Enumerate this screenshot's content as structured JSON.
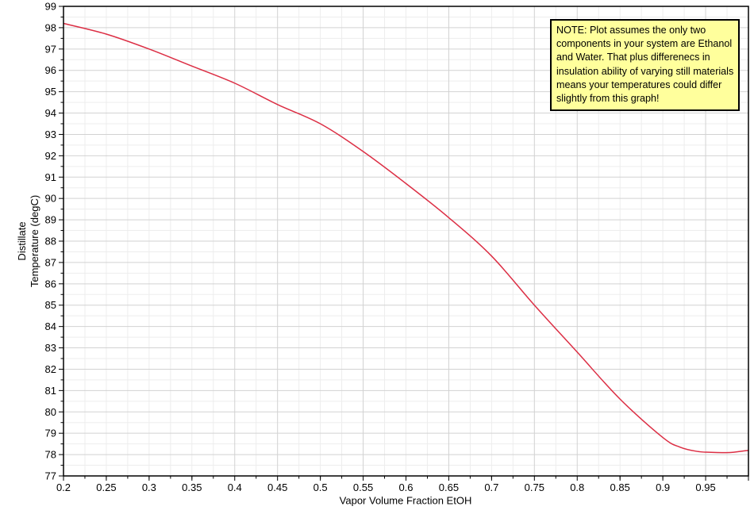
{
  "chart_data": {
    "type": "line",
    "title": "",
    "xlabel": "Vapor Volume Fraction EtOH",
    "ylabel_lines": [
      "Distillate",
      "Temperature (degC)"
    ],
    "xlim": [
      0.2,
      1.0
    ],
    "ylim": [
      77,
      99
    ],
    "x_major_step": 0.05,
    "x_minor_step": 0.025,
    "y_major_step": 1,
    "y_minor_step": 0.5,
    "grid": {
      "on": true,
      "major_color": "#d2d2d2",
      "minor_color": "#ededed"
    },
    "axis_color": "#000000",
    "legend_position": "none",
    "x_tick_labels": [
      "0.2",
      "0.25",
      "0.3",
      "0.35",
      "0.4",
      "0.45",
      "0.5",
      "0.55",
      "0.6",
      "0.65",
      "0.7",
      "0.75",
      "0.8",
      "0.85",
      "0.9",
      "0.95"
    ],
    "y_tick_labels_top_to_bottom": [
      "99",
      "98",
      "97",
      "96",
      "95",
      "94",
      "93",
      "92",
      "91",
      "90",
      "89",
      "88",
      "87",
      "86",
      "85",
      "84",
      "83",
      "82",
      "81",
      "80",
      "79",
      "78",
      "77"
    ],
    "series": [
      {
        "name": "distillate-temperature-curve",
        "color": "#dc2e44",
        "x": [
          0.2,
          0.25,
          0.3,
          0.35,
          0.4,
          0.45,
          0.5,
          0.55,
          0.6,
          0.65,
          0.7,
          0.75,
          0.8,
          0.85,
          0.9,
          0.92,
          0.94,
          0.96,
          0.98,
          1.0
        ],
        "y": [
          98.2,
          97.7,
          97.0,
          96.2,
          95.4,
          94.4,
          93.5,
          92.2,
          90.7,
          89.1,
          87.3,
          85.0,
          82.8,
          80.6,
          78.8,
          78.35,
          78.15,
          78.1,
          78.1,
          78.2
        ]
      }
    ]
  },
  "note_box": {
    "bg_color": "#ffff9c",
    "border_color": "#000000",
    "lines": [
      "NOTE: Plot assumes the only two",
      "components in your system are Ethanol",
      "and Water. That plus differenecs in",
      "insulation ability of varying still materials",
      "means your temperatures could differ",
      "slightly from this graph!"
    ]
  }
}
